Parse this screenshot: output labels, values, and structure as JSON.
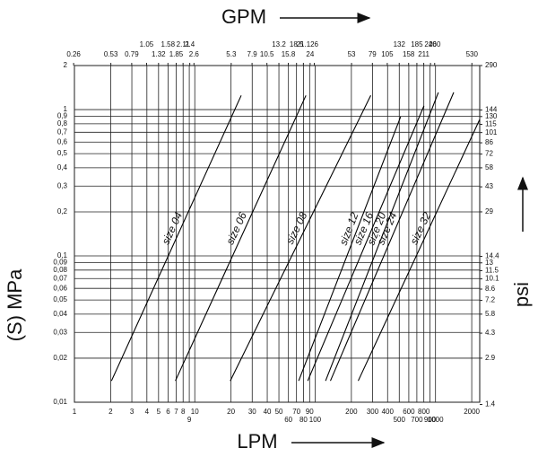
{
  "chart_data": {
    "type": "line",
    "x2label": "GPM",
    "xlabel": "LPM",
    "ylabel": "(S) MPa",
    "y2label": "psi",
    "xscale": "log",
    "yscale": "log",
    "grid": true,
    "color": "#000000",
    "xlim": [
      1,
      2330
    ],
    "xticks": [
      1,
      2,
      3,
      4,
      5,
      6,
      7,
      8,
      9,
      10,
      20,
      30,
      40,
      50,
      60,
      70,
      80,
      90,
      100,
      200,
      300,
      400,
      500,
      600,
      700,
      800,
      900,
      1000,
      2000
    ],
    "x2lim": [
      0.264,
      615.6
    ],
    "x2ticks": [
      0.26,
      0.53,
      0.79,
      1.05,
      1.32,
      1.58,
      1.85,
      2.11,
      2.4,
      2.6,
      5.3,
      7.9,
      10.5,
      13.2,
      15.8,
      18.5,
      21.1,
      24,
      26,
      53,
      79,
      105,
      132,
      158,
      185,
      211,
      240,
      260,
      530
    ],
    "ylim": [
      0.01,
      2
    ],
    "yticks": [
      2,
      1,
      {
        "value": 0.9,
        "label": "0,9"
      },
      {
        "value": 0.8,
        "label": "0,8"
      },
      {
        "value": 0.7,
        "label": "0,7"
      },
      {
        "value": 0.6,
        "label": "0,6"
      },
      {
        "value": 0.5,
        "label": "0,5"
      },
      {
        "value": 0.4,
        "label": "0,4"
      },
      {
        "value": 0.3,
        "label": "0,3"
      },
      {
        "value": 0.2,
        "label": "0,2"
      },
      {
        "value": 0.1,
        "label": "0,1"
      },
      {
        "value": 0.09,
        "label": "0,09"
      },
      {
        "value": 0.08,
        "label": "0,08"
      },
      {
        "value": 0.07,
        "label": "0,07"
      },
      {
        "value": 0.06,
        "label": "0,06"
      },
      {
        "value": 0.05,
        "label": "0,05"
      },
      {
        "value": 0.04,
        "label": "0,04"
      },
      {
        "value": 0.03,
        "label": "0,03"
      },
      {
        "value": 0.02,
        "label": "0,02"
      },
      {
        "value": 0.01,
        "label": "0,01"
      }
    ],
    "y2lim": [
      1.45,
      290
    ],
    "y2ticks": [
      290,
      144,
      130,
      115,
      101,
      86,
      72,
      58,
      43,
      29,
      14.4,
      13,
      11.5,
      10.1,
      8.6,
      7.2,
      5.8,
      4.3,
      2.9,
      1.4
    ],
    "series": [
      {
        "name": "size 04",
        "x": [
          2.03,
          24.3
        ],
        "values": [
          0.014,
          1.25
        ]
      },
      {
        "name": "size 06",
        "x": [
          6.9,
          83.9
        ],
        "values": [
          0.014,
          1.25
        ]
      },
      {
        "name": "size 08",
        "x": [
          19.7,
          290
        ],
        "values": [
          0.014,
          1.25
        ]
      },
      {
        "name": "size 12",
        "x": [
          73,
          513
        ],
        "values": [
          0.014,
          0.893
        ]
      },
      {
        "name": "size 16",
        "x": [
          86.8,
          802
        ],
        "values": [
          0.014,
          1.06
        ]
      },
      {
        "name": "size 20",
        "x": [
          122,
          1057
        ],
        "values": [
          0.014,
          1.31
        ]
      },
      {
        "name": "size 24",
        "x": [
          134,
          1417
        ],
        "values": [
          0.014,
          1.31
        ]
      },
      {
        "name": "size 32",
        "x": [
          228,
          2330
        ],
        "values": [
          0.014,
          0.857
        ]
      }
    ]
  }
}
